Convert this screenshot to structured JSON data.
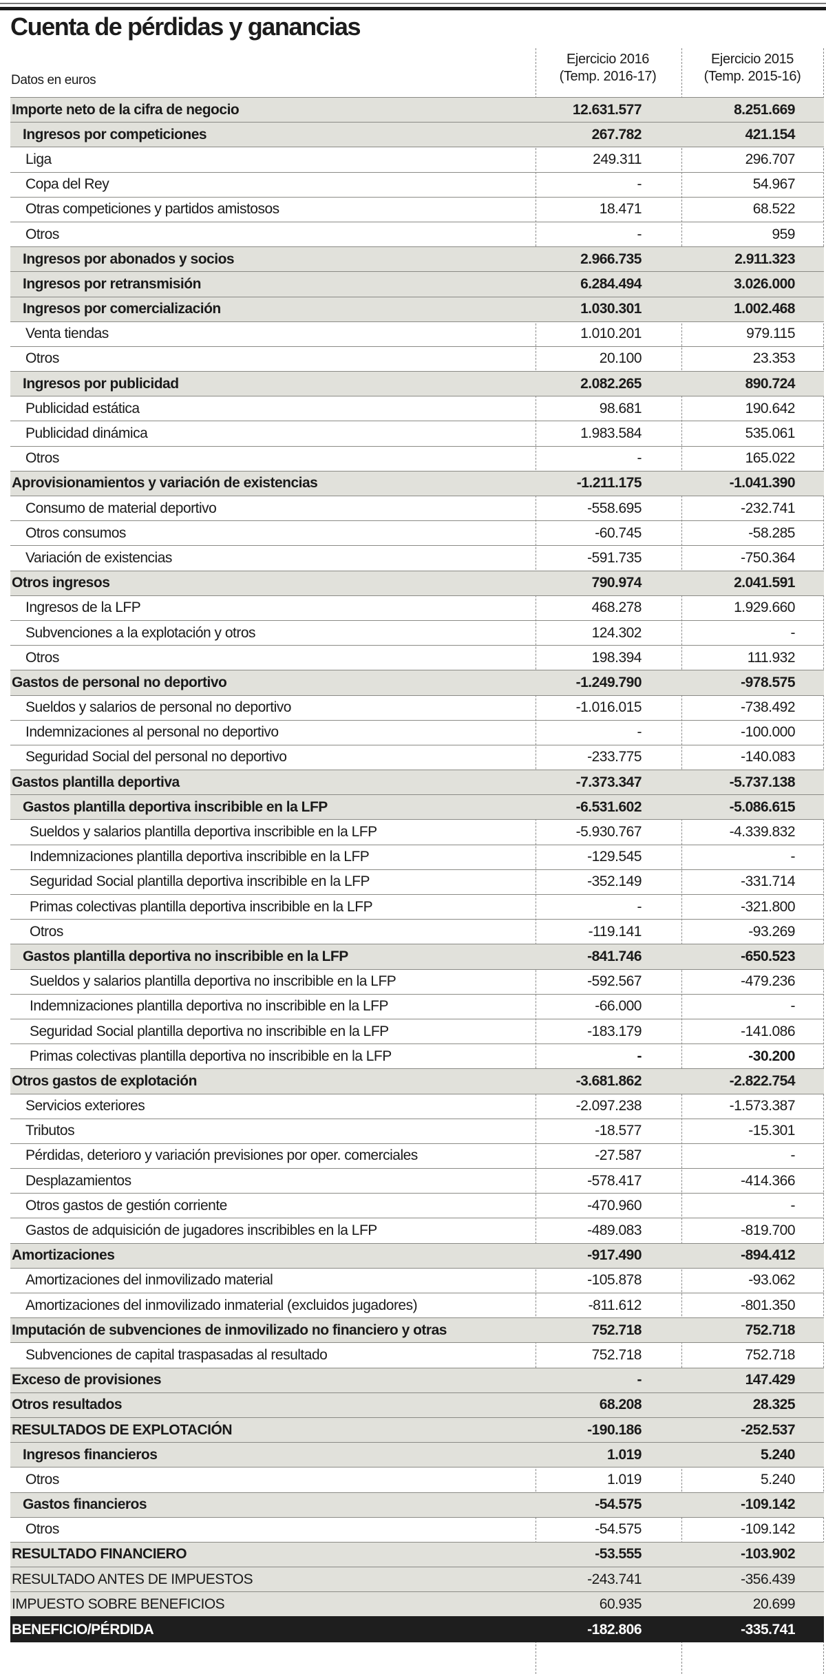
{
  "title": "Cuenta de pérdidas y ganancias",
  "units": "Datos en euros",
  "columns": [
    {
      "line1": "Ejercicio 2016",
      "line2": "(Temp. 2016-17)"
    },
    {
      "line1": "Ejercicio 2015",
      "line2": "(Temp. 2015-16)"
    }
  ],
  "colors": {
    "shade": "#e1e1db",
    "total_bg": "#1e1e1e"
  },
  "rows": [
    {
      "label": "Importe neto de la cifra de negocio",
      "level": 0,
      "v2016": "12.631.577",
      "v2015": "8.251.669"
    },
    {
      "label": "Ingresos por competiciones",
      "level": 1,
      "v2016": "267.782",
      "v2015": "421.154"
    },
    {
      "label": "Liga",
      "level": 2,
      "v2016": "249.311",
      "v2015": "296.707"
    },
    {
      "label": "Copa del Rey",
      "level": 2,
      "v2016": "-",
      "v2015": "54.967"
    },
    {
      "label": "Otras competiciones y partidos amistosos",
      "level": 2,
      "v2016": "18.471",
      "v2015": "68.522"
    },
    {
      "label": "Otros",
      "level": 2,
      "v2016": "-",
      "v2015": "959"
    },
    {
      "label": "Ingresos por abonados y socios",
      "level": 1,
      "v2016": "2.966.735",
      "v2015": "2.911.323"
    },
    {
      "label": "Ingresos por retransmisión",
      "level": 1,
      "v2016": "6.284.494",
      "v2015": "3.026.000"
    },
    {
      "label": "Ingresos por comercialización",
      "level": 1,
      "v2016": "1.030.301",
      "v2015": "1.002.468"
    },
    {
      "label": "Venta tiendas",
      "level": 2,
      "v2016": "1.010.201",
      "v2015": "979.115"
    },
    {
      "label": "Otros",
      "level": 2,
      "v2016": "20.100",
      "v2015": "23.353"
    },
    {
      "label": "Ingresos por publicidad",
      "level": 1,
      "v2016": "2.082.265",
      "v2015": "890.724"
    },
    {
      "label": "Publicidad estática",
      "level": 2,
      "v2016": "98.681",
      "v2015": "190.642"
    },
    {
      "label": "Publicidad dinámica",
      "level": 2,
      "v2016": "1.983.584",
      "v2015": "535.061"
    },
    {
      "label": "Otros",
      "level": 2,
      "v2016": "-",
      "v2015": "165.022"
    },
    {
      "label": "Aprovisionamientos y variación de existencias",
      "level": 0,
      "v2016": "-1.211.175",
      "v2015": "-1.041.390"
    },
    {
      "label": "Consumo de material deportivo",
      "level": 2,
      "v2016": "-558.695",
      "v2015": "-232.741"
    },
    {
      "label": "Otros consumos",
      "level": 2,
      "v2016": "-60.745",
      "v2015": "-58.285"
    },
    {
      "label": "Variación de existencias",
      "level": 2,
      "v2016": "-591.735",
      "v2015": "-750.364"
    },
    {
      "label": "Otros ingresos",
      "level": 0,
      "v2016": "790.974",
      "v2015": "2.041.591"
    },
    {
      "label": "Ingresos de la LFP",
      "level": 2,
      "v2016": "468.278",
      "v2015": "1.929.660"
    },
    {
      "label": "Subvenciones a la explotación y otros",
      "level": 2,
      "v2016": "124.302",
      "v2015": "-"
    },
    {
      "label": "Otros",
      "level": 2,
      "v2016": "198.394",
      "v2015": "111.932"
    },
    {
      "label": "Gastos de personal no deportivo",
      "level": 0,
      "v2016": "-1.249.790",
      "v2015": "-978.575"
    },
    {
      "label": "Sueldos y salarios de personal no deportivo",
      "level": 2,
      "v2016": "-1.016.015",
      "v2015": "-738.492"
    },
    {
      "label": "Indemnizaciones al personal no deportivo",
      "level": 2,
      "v2016": "-",
      "v2015": "-100.000"
    },
    {
      "label": "Seguridad Social del personal no deportivo",
      "level": 2,
      "v2016": "-233.775",
      "v2015": "-140.083"
    },
    {
      "label": "Gastos plantilla deportiva",
      "level": 0,
      "v2016": "-7.373.347",
      "v2015": "-5.737.138"
    },
    {
      "label": "Gastos plantilla deportiva inscribible en la LFP",
      "level": 1,
      "v2016": "-6.531.602",
      "v2015": "-5.086.615"
    },
    {
      "label": "Sueldos y salarios plantilla deportiva inscribible en la LFP",
      "level": 3,
      "v2016": "-5.930.767",
      "v2015": "-4.339.832"
    },
    {
      "label": "Indemnizaciones plantilla deportiva inscribible en la LFP",
      "level": 3,
      "v2016": "-129.545",
      "v2015": "-"
    },
    {
      "label": "Seguridad Social plantilla deportiva inscribible en la LFP",
      "level": 3,
      "v2016": "-352.149",
      "v2015": "-331.714"
    },
    {
      "label": "Primas colectivas plantilla deportiva inscribible en la LFP",
      "level": 3,
      "v2016": "-",
      "v2015": "-321.800"
    },
    {
      "label": "Otros",
      "level": 3,
      "v2016": "-119.141",
      "v2015": "-93.269"
    },
    {
      "label": "Gastos plantilla deportiva no inscribible en la LFP",
      "level": 1,
      "v2016": "-841.746",
      "v2015": "-650.523"
    },
    {
      "label": "Sueldos y salarios plantilla deportiva no inscribible en la LFP",
      "level": 3,
      "v2016": "-592.567",
      "v2015": "-479.236"
    },
    {
      "label": "Indemnizaciones plantilla deportiva no inscribible en la LFP",
      "level": 3,
      "v2016": "-66.000",
      "v2015": "-"
    },
    {
      "label": "Seguridad Social plantilla deportiva no inscribible en la LFP",
      "level": 3,
      "v2016": "-183.179",
      "v2015": "-141.086"
    },
    {
      "label": "Primas colectivas plantilla deportiva no inscribible en la LFP",
      "level": 3,
      "bold_values": true,
      "v2016": "-",
      "v2015": "-30.200"
    },
    {
      "label": "Otros gastos de explotación",
      "level": 0,
      "v2016": "-3.681.862",
      "v2015": "-2.822.754"
    },
    {
      "label": "Servicios exteriores",
      "level": 2,
      "v2016": "-2.097.238",
      "v2015": "-1.573.387"
    },
    {
      "label": "Tributos",
      "level": 2,
      "v2016": "-18.577",
      "v2015": "-15.301"
    },
    {
      "label": "Pérdidas, deterioro y variación previsiones por oper. comerciales",
      "level": 2,
      "v2016": "-27.587",
      "v2015": "-"
    },
    {
      "label": "Desplazamientos",
      "level": 2,
      "v2016": "-578.417",
      "v2015": "-414.366"
    },
    {
      "label": "Otros gastos de gestión corriente",
      "level": 2,
      "v2016": "-470.960",
      "v2015": "-"
    },
    {
      "label": "Gastos de adquisición de jugadores inscribibles en la LFP",
      "level": 2,
      "v2016": "-489.083",
      "v2015": "-819.700"
    },
    {
      "label": "Amortizaciones",
      "level": 0,
      "v2016": "-917.490",
      "v2015": "-894.412"
    },
    {
      "label": "Amortizaciones del inmovilizado material",
      "level": 2,
      "v2016": "-105.878",
      "v2015": "-93.062"
    },
    {
      "label": "Amortizaciones del inmovilizado inmaterial (excluidos jugadores)",
      "level": 2,
      "v2016": "-811.612",
      "v2015": "-801.350"
    },
    {
      "label": "Imputación de subvenciones de inmovilizado no financiero y otras",
      "level": 0,
      "v2016": "752.718",
      "v2015": "752.718"
    },
    {
      "label": "Subvenciones de capital traspasadas al resultado",
      "level": 2,
      "v2016": "752.718",
      "v2015": "752.718"
    },
    {
      "label": "Exceso de provisiones",
      "level": 0,
      "v2016": "-",
      "v2015": "147.429"
    },
    {
      "label": "Otros resultados",
      "level": 0,
      "v2016": "68.208",
      "v2015": "28.325"
    },
    {
      "label": "RESULTADOS DE EXPLOTACIÓN",
      "level": 0,
      "v2016": "-190.186",
      "v2015": "-252.537"
    },
    {
      "label": "Ingresos financieros",
      "level": 1,
      "v2016": "1.019",
      "v2015": "5.240"
    },
    {
      "label": "Otros",
      "level": 2,
      "v2016": "1.019",
      "v2015": "5.240"
    },
    {
      "label": "Gastos financieros",
      "level": 1,
      "v2016": "-54.575",
      "v2015": "-109.142"
    },
    {
      "label": "Otros",
      "level": 2,
      "v2016": "-54.575",
      "v2015": "-109.142"
    },
    {
      "label": "RESULTADO FINANCIERO",
      "level": 0,
      "v2016": "-53.555",
      "v2015": "-103.902"
    },
    {
      "label": "RESULTADO ANTES DE IMPUESTOS",
      "level": 0,
      "light": true,
      "v2016": "-243.741",
      "v2015": "-356.439"
    },
    {
      "label": "IMPUESTO SOBRE BENEFICIOS",
      "level": 0,
      "light": true,
      "v2016": "60.935",
      "v2015": "20.699"
    },
    {
      "label": "BENEFICIO/PÉRDIDA",
      "level": "total",
      "v2016": "-182.806",
      "v2015": "-335.741"
    }
  ]
}
